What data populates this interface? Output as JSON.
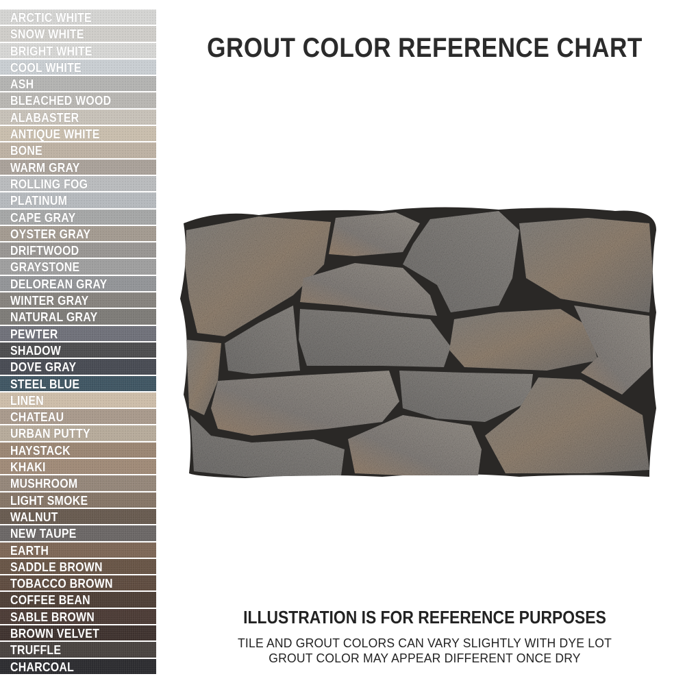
{
  "title": "GROUT COLOR REFERENCE CHART",
  "swatches": [
    {
      "name": "ARCTIC WHITE",
      "color": "#d4d4d2"
    },
    {
      "name": "SNOW WHITE",
      "color": "#cfcdc9"
    },
    {
      "name": "BRIGHT WHITE",
      "color": "#d6d6d4"
    },
    {
      "name": "COOL WHITE",
      "color": "#c9ced2"
    },
    {
      "name": "ASH",
      "color": "#b3b3b1"
    },
    {
      "name": "BLEACHED WOOD",
      "color": "#b8b6b2"
    },
    {
      "name": "ALABASTER",
      "color": "#c7c1b8"
    },
    {
      "name": "ANTIQUE WHITE",
      "color": "#c9bead"
    },
    {
      "name": "BONE",
      "color": "#bdb1a3"
    },
    {
      "name": "WARM GRAY",
      "color": "#a9a199"
    },
    {
      "name": "ROLLING FOG",
      "color": "#b9bbbd"
    },
    {
      "name": "PLATINUM",
      "color": "#b5b9bd"
    },
    {
      "name": "CAPE GRAY",
      "color": "#a5a6a6"
    },
    {
      "name": "OYSTER GRAY",
      "color": "#a39a90"
    },
    {
      "name": "DRIFTWOOD",
      "color": "#989592"
    },
    {
      "name": "GRAYSTONE",
      "color": "#9e9e9e"
    },
    {
      "name": "DELOREAN GRAY",
      "color": "#929497"
    },
    {
      "name": "WINTER GRAY",
      "color": "#86827d"
    },
    {
      "name": "NATURAL GRAY",
      "color": "#7d7b77"
    },
    {
      "name": "PEWTER",
      "color": "#6f7079"
    },
    {
      "name": "SHADOW",
      "color": "#4c4c4e"
    },
    {
      "name": "DOVE GRAY",
      "color": "#474a52"
    },
    {
      "name": "STEEL BLUE",
      "color": "#3f5562"
    },
    {
      "name": "LINEN",
      "color": "#cdbda9"
    },
    {
      "name": "CHATEAU",
      "color": "#a8998b"
    },
    {
      "name": "URBAN PUTTY",
      "color": "#b6aa9a"
    },
    {
      "name": "HAYSTACK",
      "color": "#9a8572"
    },
    {
      "name": "KHAKI",
      "color": "#9f8a77"
    },
    {
      "name": "MUSHROOM",
      "color": "#948679"
    },
    {
      "name": "LIGHT SMOKE",
      "color": "#857566"
    },
    {
      "name": "WALNUT",
      "color": "#675a4f"
    },
    {
      "name": "NEW TAUPE",
      "color": "#6a6665"
    },
    {
      "name": "EARTH",
      "color": "#7d6656"
    },
    {
      "name": "SADDLE BROWN",
      "color": "#675445"
    },
    {
      "name": "TOBACCO BROWN",
      "color": "#5e4b3f"
    },
    {
      "name": "COFFEE BEAN",
      "color": "#4d3e35"
    },
    {
      "name": "SABLE BROWN",
      "color": "#4b3b35"
    },
    {
      "name": "BROWN VELVET",
      "color": "#3e322e"
    },
    {
      "name": "TRUFFLE",
      "color": "#48423f"
    },
    {
      "name": "CHARCOAL",
      "color": "#2b2b2f"
    }
  ],
  "footer": {
    "heading": "ILLUSTRATION IS FOR REFERENCE PURPOSES",
    "line1": "TILE AND GROUT COLORS CAN VARY SLIGHTLY WITH DYE LOT",
    "line2": "GROUT COLOR MAY APPEAR DIFFERENT ONCE DRY"
  },
  "grout_color": "#2a2826"
}
